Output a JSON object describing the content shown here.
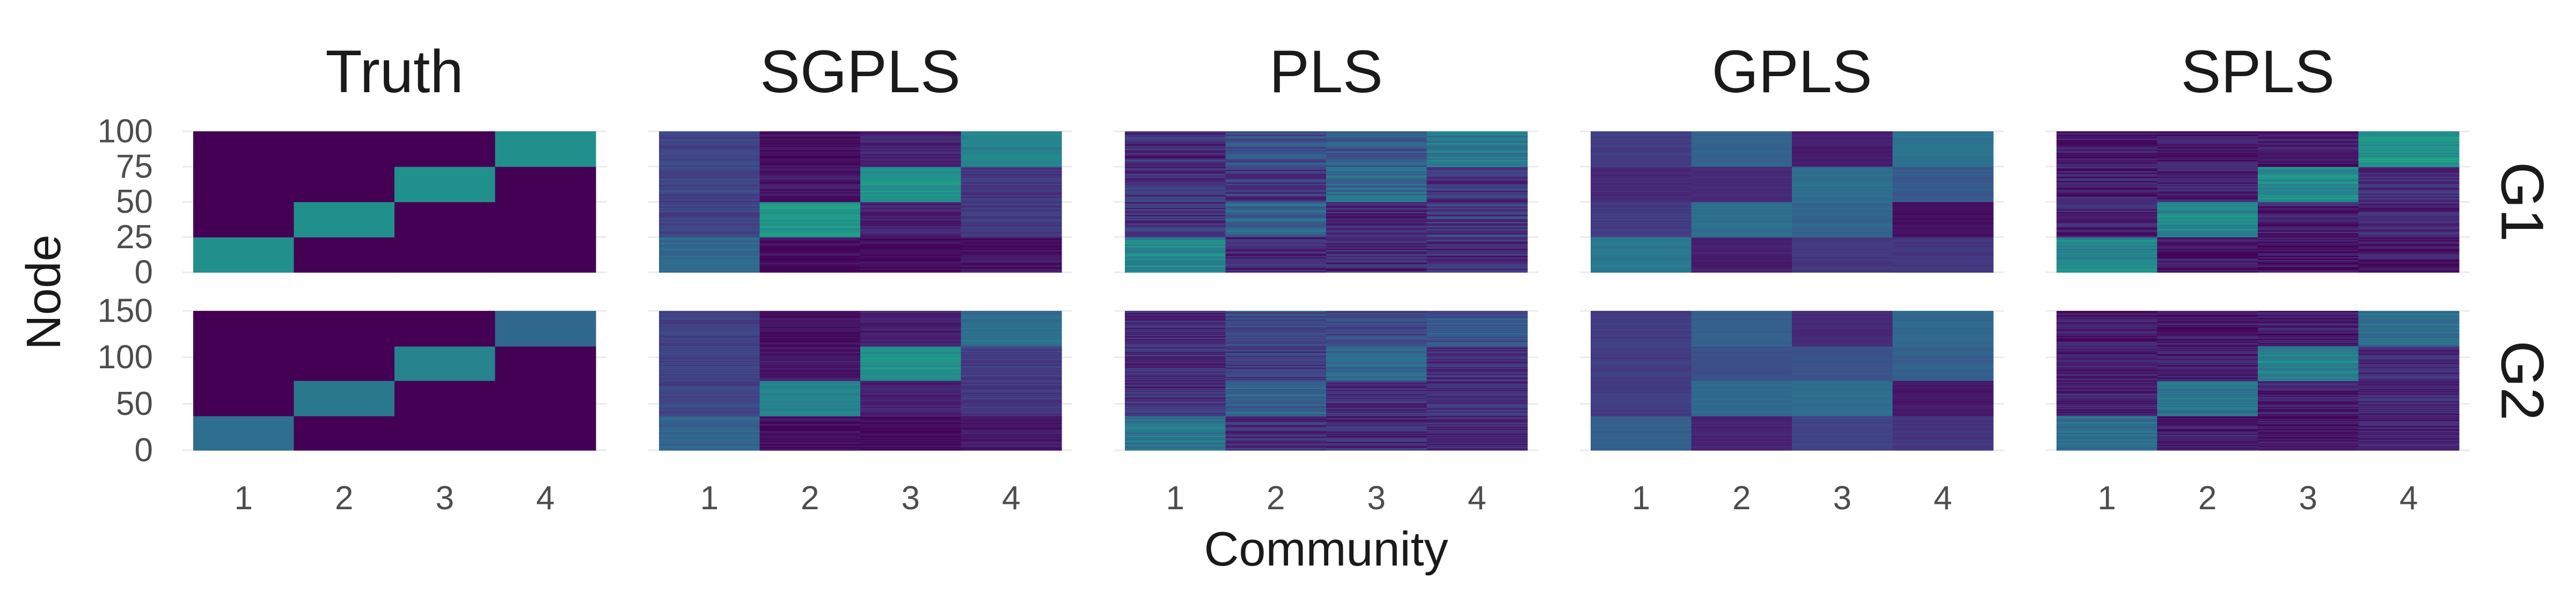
{
  "chart_data": {
    "type": "heatmap",
    "xlabel": "Community",
    "ylabel": "Node",
    "columns": [
      "Truth",
      "SGPLS",
      "PLS",
      "GPLS",
      "SPLS"
    ],
    "rows": [
      "G1",
      "G2"
    ],
    "x_ticks": [
      "1",
      "2",
      "3",
      "4"
    ],
    "y_ticks": {
      "G1": [
        "0",
        "25",
        "50",
        "75",
        "100"
      ],
      "G2": [
        "0",
        "50",
        "100",
        "150"
      ]
    },
    "y_ranges": {
      "G1": [
        0,
        100
      ],
      "G2": [
        0,
        150
      ]
    },
    "colormap": "viridis",
    "value_range": [
      0,
      1
    ],
    "blocks": {
      "G1": [
        [
          0,
          25
        ],
        [
          25,
          50
        ],
        [
          50,
          75
        ],
        [
          75,
          100
        ]
      ],
      "G2": [
        [
          0,
          37.5
        ],
        [
          37.5,
          75
        ],
        [
          75,
          112.5
        ],
        [
          112.5,
          150
        ]
      ]
    },
    "panels": {
      "Truth": {
        "noise": 0.0,
        "G1": [
          [
            0.62,
            0,
            0,
            0
          ],
          [
            0,
            0.62,
            0,
            0
          ],
          [
            0,
            0,
            0.62,
            0
          ],
          [
            0,
            0,
            0,
            0.62
          ]
        ],
        "G2": [
          [
            0.45,
            0,
            0,
            0
          ],
          [
            0,
            0.5,
            0,
            0
          ],
          [
            0,
            0,
            0.55,
            0
          ],
          [
            0,
            0,
            0,
            0.42
          ]
        ]
      },
      "SGPLS": {
        "noise": 0.06,
        "G1": [
          [
            0.42,
            0.03,
            0.03,
            0.05
          ],
          [
            0.25,
            0.66,
            0.12,
            0.22
          ],
          [
            0.26,
            0.08,
            0.64,
            0.2
          ],
          [
            0.25,
            0.05,
            0.12,
            0.55
          ]
        ],
        "G2": [
          [
            0.4,
            0.05,
            0.03,
            0.08
          ],
          [
            0.25,
            0.55,
            0.12,
            0.2
          ],
          [
            0.25,
            0.08,
            0.62,
            0.22
          ],
          [
            0.25,
            0.05,
            0.1,
            0.45
          ]
        ]
      },
      "PLS": {
        "noise": 0.12,
        "G1": [
          [
            0.6,
            0.12,
            0.14,
            0.15
          ],
          [
            0.18,
            0.4,
            0.14,
            0.2
          ],
          [
            0.18,
            0.2,
            0.45,
            0.18
          ],
          [
            0.16,
            0.3,
            0.34,
            0.5
          ]
        ],
        "G2": [
          [
            0.48,
            0.14,
            0.14,
            0.15
          ],
          [
            0.16,
            0.38,
            0.14,
            0.16
          ],
          [
            0.16,
            0.22,
            0.42,
            0.18
          ],
          [
            0.14,
            0.28,
            0.3,
            0.32
          ]
        ]
      },
      "GPLS": {
        "noise": 0.03,
        "G1": [
          [
            0.5,
            0.1,
            0.2,
            0.2
          ],
          [
            0.22,
            0.45,
            0.4,
            0.05
          ],
          [
            0.15,
            0.15,
            0.45,
            0.35
          ],
          [
            0.22,
            0.4,
            0.1,
            0.47
          ]
        ],
        "G2": [
          [
            0.38,
            0.12,
            0.25,
            0.2
          ],
          [
            0.22,
            0.42,
            0.45,
            0.08
          ],
          [
            0.22,
            0.3,
            0.32,
            0.38
          ],
          [
            0.22,
            0.38,
            0.15,
            0.42
          ]
        ]
      },
      "SPLS": {
        "noise": 0.1,
        "G1": [
          [
            0.58,
            0.08,
            0.06,
            0.1
          ],
          [
            0.12,
            0.58,
            0.1,
            0.14
          ],
          [
            0.1,
            0.12,
            0.6,
            0.16
          ],
          [
            0.1,
            0.08,
            0.1,
            0.65
          ]
        ],
        "G2": [
          [
            0.45,
            0.08,
            0.06,
            0.1
          ],
          [
            0.12,
            0.48,
            0.1,
            0.14
          ],
          [
            0.1,
            0.12,
            0.55,
            0.16
          ],
          [
            0.1,
            0.08,
            0.1,
            0.45
          ]
        ]
      }
    }
  }
}
